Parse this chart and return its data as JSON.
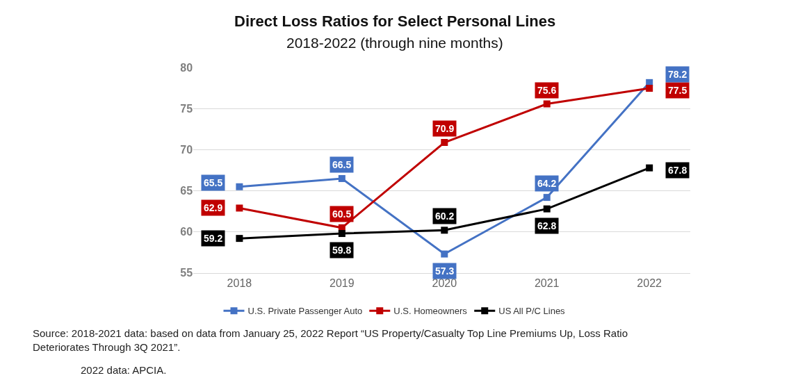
{
  "chart_data": {
    "type": "line",
    "title": "Direct Loss Ratios for Select Personal Lines",
    "subtitle": "2018-2022 (through nine months)",
    "categories": [
      "2018",
      "2019",
      "2020",
      "2021",
      "2022"
    ],
    "series": [
      {
        "name": "U.S. Private Passenger Auto",
        "color": "#4472c4",
        "values": [
          65.5,
          66.5,
          57.3,
          64.2,
          78.2
        ]
      },
      {
        "name": "U.S. Homeowners",
        "color": "#c00000",
        "values": [
          62.9,
          60.5,
          70.9,
          75.6,
          77.5
        ]
      },
      {
        "name": "US All P/C Lines",
        "color": "#000000",
        "values": [
          59.2,
          59.8,
          60.2,
          62.8,
          67.8
        ]
      }
    ],
    "ylim": [
      55,
      80
    ],
    "yticks": [
      55,
      60,
      65,
      70,
      75,
      80
    ],
    "grid": "y",
    "legend": "bottom",
    "marker": "square",
    "line_style": "solid",
    "data_labels": true,
    "annotations": [
      "Source: 2018-2021 data: based on data from January 25, 2022 Report “US Property/Casualty Top Line Premiums Up, Loss Ratio Deteriorates Through 3Q 2021”.",
      "2022 data: APCIA."
    ]
  }
}
